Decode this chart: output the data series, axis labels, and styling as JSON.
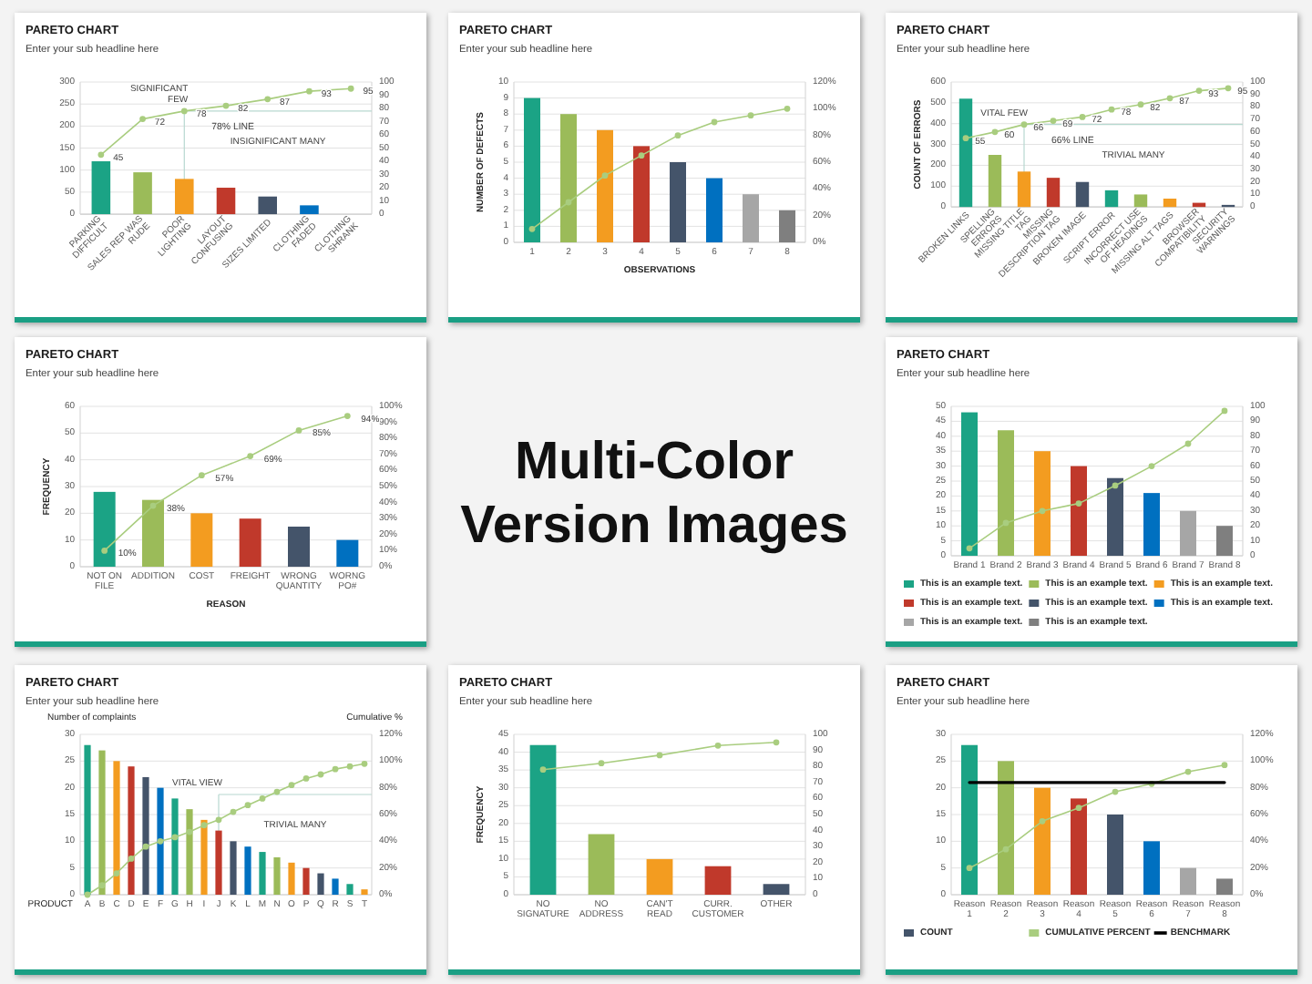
{
  "chart_data": [
    {
      "type": "bar",
      "title": "PARETO CHART",
      "subtitle": "Enter your sub headline here",
      "categories": [
        "PARKING\nDIFFICULT",
        "SALES REP WAS\nRUDE",
        "POOR\nLIGHTING",
        "LAYOUT\nCONFUSING",
        "SIZES LIMITED",
        "CLOTHING\nFADED",
        "CLOTHING\nSHRANK"
      ],
      "series": [
        {
          "type": "bar",
          "colors": [
            "#1ba385",
            "#9bbb59",
            "#f39c20",
            "#c0392b",
            "#44546a",
            "#0070c0",
            null
          ],
          "values": [
            120,
            95,
            80,
            60,
            40,
            20,
            null
          ]
        },
        {
          "type": "line",
          "axis": "y2",
          "color": "#a9cd7f",
          "values": [
            45,
            72,
            78,
            82,
            87,
            93,
            95
          ],
          "value_labels": [
            "45",
            "72",
            "78",
            "82",
            "87",
            "93",
            "95"
          ]
        }
      ],
      "ylim": [
        0,
        300
      ],
      "yticks": [
        0,
        50,
        100,
        150,
        200,
        250,
        300
      ],
      "y2lim": [
        0,
        100
      ],
      "y2ticks": [
        0,
        10,
        20,
        30,
        40,
        50,
        60,
        70,
        80,
        90,
        100
      ],
      "grid": "y",
      "marker": "circle",
      "ref_lines": [
        {
          "axis": "x",
          "value": "POOR\nLIGHTING"
        },
        {
          "axis": "y2",
          "value": 78,
          "label": "78% LINE"
        }
      ],
      "annotations": [
        "SIGNIFICANT\nFEW",
        "INSIGNIFICANT MANY"
      ]
    },
    {
      "type": "bar",
      "title": "PARETO CHART",
      "subtitle": "Enter your sub headline here",
      "xlabel": "OBSERVATIONS",
      "ylabel": "NUMBER OF DEFECTS",
      "categories": [
        "1",
        "2",
        "3",
        "4",
        "5",
        "6",
        "7",
        "8"
      ],
      "series": [
        {
          "type": "bar",
          "colors": [
            "#1ba385",
            "#9bbb59",
            "#f39c20",
            "#c0392b",
            "#44546a",
            "#0070c0",
            "#a6a6a6",
            "#7f7f7f"
          ],
          "values": [
            9,
            8,
            7,
            6,
            5,
            4,
            3,
            2
          ]
        },
        {
          "type": "line",
          "axis": "y2",
          "color": "#a9cd7f",
          "values": [
            10,
            30,
            50,
            65,
            80,
            90,
            95,
            100
          ]
        }
      ],
      "ylim": [
        0,
        10
      ],
      "yticks": [
        0,
        1,
        2,
        3,
        4,
        5,
        6,
        7,
        8,
        9,
        10
      ],
      "y2lim": [
        0,
        120
      ],
      "y2ticks": [
        {
          "value": 0,
          "label": "0%"
        },
        {
          "value": 20,
          "label": "20%"
        },
        {
          "value": 40,
          "label": "40%"
        },
        {
          "value": 60,
          "label": "60%"
        },
        {
          "value": 80,
          "label": "80%"
        },
        {
          "value": 100,
          "label": "100%"
        },
        {
          "value": 120,
          "label": "120%"
        }
      ],
      "grid": "y",
      "marker": "circle"
    },
    {
      "type": "bar",
      "title": "PARETO CHART",
      "subtitle": "Enter your sub headline here",
      "ylabel": "COUNT OF ERRORS",
      "categories": [
        "BROKEN LINKS",
        "SPELLING ERRORS",
        "MISSING TITLE TAG",
        "MISSING DESCRIPTION TAG",
        "BROKEN IMAGE",
        "SCRIPT ERROR",
        "INCORRECT USE OF HEADINGS",
        "MISSING ALT TAGS",
        "BROWSER COMPATIBILITY",
        "SECURITY WARNINGS"
      ],
      "series": [
        {
          "type": "bar",
          "colors": [
            "#1ba385",
            "#9bbb59",
            "#f39c20",
            "#c0392b",
            "#44546a",
            "#1ba385",
            "#9bbb59",
            "#f39c20",
            "#c0392b",
            "#44546a"
          ],
          "values": [
            520,
            250,
            170,
            140,
            120,
            80,
            60,
            40,
            20,
            10
          ]
        },
        {
          "type": "line",
          "axis": "y2",
          "color": "#a9cd7f",
          "values": [
            55,
            60,
            66,
            69,
            72,
            78,
            82,
            87,
            93,
            95
          ],
          "value_labels": [
            "55",
            "60",
            "66",
            "69",
            "72",
            "78",
            "82",
            "87",
            "93",
            "95"
          ]
        }
      ],
      "ylim": [
        0,
        600
      ],
      "yticks": [
        0,
        100,
        200,
        300,
        400,
        500,
        600
      ],
      "y2lim": [
        0,
        100
      ],
      "y2ticks": [
        0,
        10,
        20,
        30,
        40,
        50,
        60,
        70,
        80,
        90,
        100
      ],
      "grid": "y",
      "marker": "circle",
      "ref_lines": [
        {
          "axis": "x",
          "value": "MISSING TITLE TAG"
        },
        {
          "axis": "y2",
          "value": 66,
          "label": "66% LINE"
        }
      ],
      "annotations": [
        "VITAL FEW",
        "TRIVIAL MANY"
      ]
    },
    {
      "type": "bar",
      "title": "PARETO CHART",
      "subtitle": "Enter your sub headline here",
      "xlabel": "REASON",
      "ylabel": "FREQUENCY",
      "categories": [
        "NOT ON FILE",
        "ADDITION",
        "COST",
        "FREIGHT",
        "WRONG\nQUANTITY",
        "WORNG PO#"
      ],
      "series": [
        {
          "type": "bar",
          "colors": [
            "#1ba385",
            "#9bbb59",
            "#f39c20",
            "#c0392b",
            "#44546a",
            "#0070c0"
          ],
          "values": [
            28,
            25,
            20,
            18,
            15,
            10
          ]
        },
        {
          "type": "line",
          "axis": "y2",
          "color": "#a9cd7f",
          "values": [
            10,
            38,
            57,
            69,
            85,
            94
          ],
          "value_labels": [
            "10%",
            "38%",
            "57%",
            "69%",
            "85%",
            "94%"
          ]
        }
      ],
      "ylim": [
        0,
        60
      ],
      "yticks": [
        0,
        10,
        20,
        30,
        40,
        50,
        60
      ],
      "y2lim": [
        0,
        100
      ],
      "y2ticks": [
        {
          "value": 0,
          "label": "0%"
        },
        {
          "value": 10,
          "label": "10%"
        },
        {
          "value": 20,
          "label": "20%"
        },
        {
          "value": 30,
          "label": "30%"
        },
        {
          "value": 40,
          "label": "40%"
        },
        {
          "value": 50,
          "label": "50%"
        },
        {
          "value": 60,
          "label": "60%"
        },
        {
          "value": 70,
          "label": "70%"
        },
        {
          "value": 80,
          "label": "80%"
        },
        {
          "value": 90,
          "label": "90%"
        },
        {
          "value": 100,
          "label": "100%"
        }
      ],
      "grid": "y",
      "marker": "circle"
    },
    {
      "type": "other",
      "title": "Multi-Color\nVersion Images"
    },
    {
      "type": "bar",
      "title": "PARETO CHART",
      "subtitle": "Enter your sub headline here",
      "categories": [
        "Brand 1",
        "Brand 2",
        "Brand 3",
        "Brand 4",
        "Brand 5",
        "Brand 6",
        "Brand 7",
        "Brand 8"
      ],
      "stacked": true,
      "series": [
        {
          "type": "bar",
          "name": "This is an example text.",
          "color": "#1ba385",
          "values": [
            48,
            null,
            null,
            null,
            null,
            null,
            null,
            null
          ]
        },
        {
          "type": "bar",
          "name": "This is an example text.",
          "color": "#9bbb59",
          "values": [
            null,
            42,
            null,
            null,
            null,
            null,
            null,
            null
          ]
        },
        {
          "type": "bar",
          "name": "This is an example text.",
          "color": "#f39c20",
          "values": [
            null,
            null,
            35,
            null,
            null,
            null,
            null,
            null
          ]
        },
        {
          "type": "bar",
          "name": "This is an example text.",
          "color": "#c0392b",
          "values": [
            null,
            null,
            null,
            30,
            null,
            null,
            null,
            null
          ]
        },
        {
          "type": "bar",
          "name": "This is an example text.",
          "color": "#44546a",
          "values": [
            null,
            null,
            null,
            null,
            26,
            null,
            null,
            null
          ]
        },
        {
          "type": "bar",
          "name": "This is an example text.",
          "color": "#0070c0",
          "values": [
            null,
            null,
            null,
            null,
            null,
            21,
            null,
            null
          ]
        },
        {
          "type": "bar",
          "name": "This is an example text.",
          "color": "#a6a6a6",
          "values": [
            null,
            null,
            null,
            null,
            null,
            null,
            15,
            null
          ]
        },
        {
          "type": "bar",
          "name": "This is an example text.",
          "color": "#7f7f7f",
          "values": [
            null,
            null,
            null,
            null,
            null,
            null,
            null,
            10
          ]
        },
        {
          "type": "line",
          "axis": "y2",
          "color": "#a9cd7f",
          "values": [
            5,
            22,
            30,
            35,
            47,
            60,
            75,
            97
          ]
        }
      ],
      "ylim": [
        0,
        50
      ],
      "yticks": [
        0,
        5,
        10,
        15,
        20,
        25,
        30,
        35,
        40,
        45,
        50
      ],
      "y2lim": [
        0,
        100
      ],
      "y2ticks": [
        0,
        10,
        20,
        30,
        40,
        50,
        60,
        70,
        80,
        90,
        100
      ],
      "grid": "y",
      "marker": "circle",
      "legend": "bottom"
    },
    {
      "type": "bar",
      "title": "PARETO CHART",
      "subtitle": "Enter your sub headline here",
      "xlabel": "PRODUCT",
      "ylabel": "Number of complaints",
      "y2label": "Cumulative %",
      "categories": [
        "A",
        "B",
        "C",
        "D",
        "E",
        "F",
        "G",
        "H",
        "I",
        "J",
        "K",
        "L",
        "M",
        "N",
        "O",
        "P",
        "Q",
        "R",
        "S",
        "T"
      ],
      "series": [
        {
          "type": "bar",
          "colors": [
            "#1ba385",
            "#9bbb59",
            "#f39c20",
            "#c0392b",
            "#44546a",
            "#0070c0",
            "#1ba385",
            "#9bbb59",
            "#f39c20",
            "#c0392b",
            "#44546a",
            "#0070c0",
            "#1ba385",
            "#9bbb59",
            "#f39c20",
            "#c0392b",
            "#44546a",
            "#0070c0",
            "#1ba385",
            "#f39c20"
          ],
          "values": [
            28,
            27,
            25,
            24,
            22,
            20,
            18,
            16,
            14,
            12,
            10,
            9,
            8,
            7,
            6,
            5,
            4,
            3,
            2,
            1
          ]
        },
        {
          "type": "line",
          "axis": "y2",
          "color": "#a9cd7f",
          "values": [
            0,
            7,
            16,
            27,
            36,
            40,
            43,
            47,
            52,
            56,
            62,
            67,
            72,
            77,
            82,
            87,
            90,
            94,
            96,
            98
          ]
        }
      ],
      "ylim": [
        0,
        30
      ],
      "yticks": [
        0,
        5,
        10,
        15,
        20,
        25,
        30
      ],
      "y2lim": [
        0,
        120
      ],
      "y2ticks": [
        {
          "value": 0,
          "label": "0%"
        },
        {
          "value": 20,
          "label": "20%"
        },
        {
          "value": 40,
          "label": "40%"
        },
        {
          "value": 60,
          "label": "60%"
        },
        {
          "value": 80,
          "label": "80%"
        },
        {
          "value": 100,
          "label": "100%"
        },
        {
          "value": 120,
          "label": "120%"
        }
      ],
      "grid": "y",
      "marker": "circle",
      "ref_lines": [
        {
          "axis": "x",
          "value": "J"
        },
        {
          "axis": "y2",
          "value": 75
        }
      ],
      "annotations": [
        "VITAL VIEW",
        "TRIVIAL MANY"
      ]
    },
    {
      "type": "bar",
      "title": "PARETO CHART",
      "subtitle": "Enter your sub headline here",
      "ylabel": "FREQUENCY",
      "categories": [
        "NO SIGNATURE",
        "NO ADDRESS",
        "CAN'T READ",
        "CURR. CUSTOMER",
        "OTHER"
      ],
      "series": [
        {
          "type": "bar",
          "colors": [
            "#1ba385",
            "#9bbb59",
            "#f39c20",
            "#c0392b",
            "#44546a"
          ],
          "values": [
            42,
            17,
            10,
            8,
            3
          ]
        },
        {
          "type": "line",
          "axis": "y2",
          "color": "#a9cd7f",
          "values": [
            78,
            82,
            87,
            93,
            95
          ]
        }
      ],
      "ylim": [
        0,
        45
      ],
      "yticks": [
        0,
        5,
        10,
        15,
        20,
        25,
        30,
        35,
        40,
        45
      ],
      "y2lim": [
        0,
        100
      ],
      "y2ticks": [
        0,
        10,
        20,
        30,
        40,
        50,
        60,
        70,
        80,
        90,
        100
      ],
      "grid": "y",
      "marker": "circle"
    },
    {
      "type": "bar",
      "title": "PARETO CHART",
      "subtitle": "Enter your sub headline here",
      "categories": [
        "Reason 1",
        "Reason 2",
        "Reason 3",
        "Reason 4",
        "Reason 5",
        "Reason 6",
        "Reason 7",
        "Reason 8"
      ],
      "series": [
        {
          "type": "bar",
          "name": "COUNT",
          "color": "#44546a",
          "colors": [
            "#1ba385",
            "#9bbb59",
            "#f39c20",
            "#c0392b",
            "#44546a",
            "#0070c0",
            "#a6a6a6",
            "#7f7f7f"
          ],
          "values": [
            28,
            25,
            20,
            18,
            15,
            10,
            5,
            3
          ]
        },
        {
          "type": "line",
          "name": "CUMULATIVE PERCENT",
          "axis": "y2",
          "color": "#a9cd7f",
          "values": [
            20,
            34,
            55,
            65,
            77,
            83,
            92,
            97
          ]
        },
        {
          "type": "line",
          "name": "BENCHMARK",
          "color": "#000000",
          "marker": "none",
          "values": [
            21,
            21,
            21,
            21,
            21,
            21,
            21,
            21
          ]
        }
      ],
      "ylim": [
        0,
        30
      ],
      "yticks": [
        0,
        5,
        10,
        15,
        20,
        25,
        30
      ],
      "y2lim": [
        0,
        120
      ],
      "y2ticks": [
        {
          "value": 0,
          "label": "0%"
        },
        {
          "value": 20,
          "label": "20%"
        },
        {
          "value": 40,
          "label": "40%"
        },
        {
          "value": 60,
          "label": "60%"
        },
        {
          "value": 80,
          "label": "80%"
        },
        {
          "value": 100,
          "label": "100%"
        },
        {
          "value": 120,
          "label": "120%"
        }
      ],
      "grid": "y",
      "marker": "circle",
      "legend": "bottom"
    }
  ]
}
